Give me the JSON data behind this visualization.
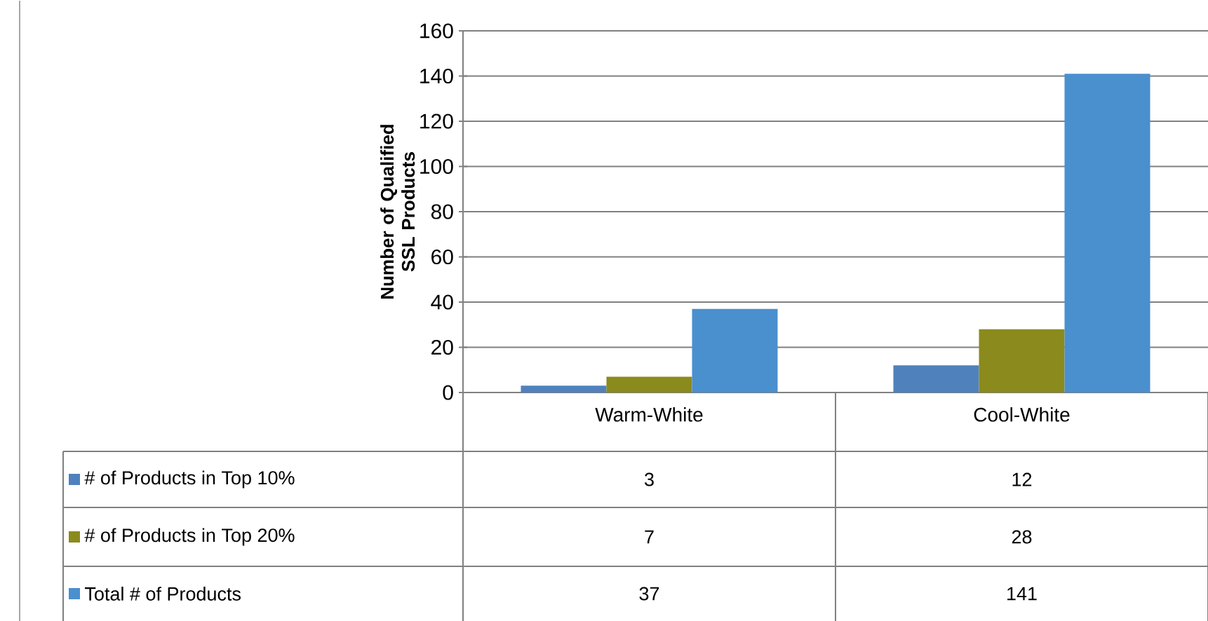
{
  "chart_data": {
    "type": "bar",
    "ylabel": "Number of Qualified SSL Products",
    "categories": [
      "Warm-White",
      "Cool-White"
    ],
    "series": [
      {
        "name": "# of Products in Top 10%",
        "color": "#4f81bd",
        "values": [
          3,
          12
        ]
      },
      {
        "name": "# of Products in Top 20%",
        "color": "#8b8a1c",
        "values": [
          7,
          28
        ]
      },
      {
        "name": "Total # of Products",
        "color": "#4a8fce",
        "values": [
          37,
          141
        ]
      }
    ],
    "ylim": [
      0,
      160
    ],
    "yticks": [
      0,
      20,
      40,
      60,
      80,
      100,
      120,
      140,
      160
    ],
    "grid": "y",
    "legend": "bottom left",
    "data_labels": true
  }
}
